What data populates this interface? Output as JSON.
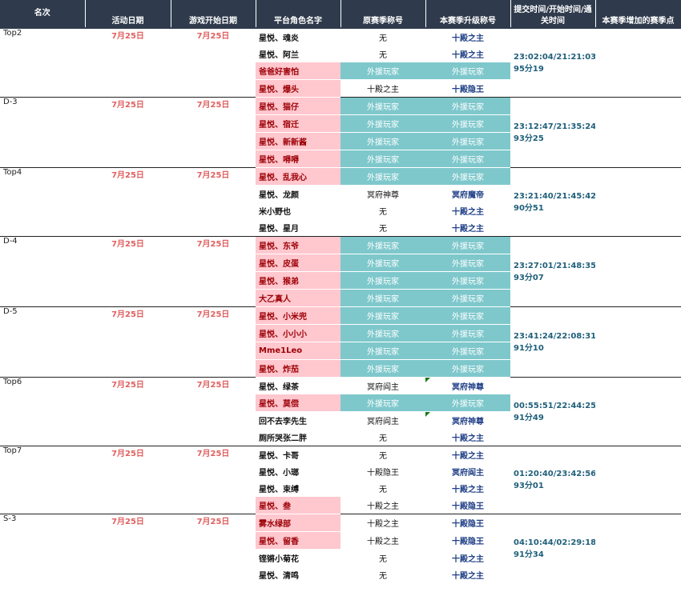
{
  "headers": [
    "名次",
    "活动日期",
    "游戏开始日期",
    "平台角色名字",
    "原赛季称号",
    "本赛季升级称号",
    "提交时间/开始时间/通关时间",
    "本赛季增加的赛季点"
  ],
  "groups": [
    {
      "rank": "Top2",
      "activity_date": "7月25日",
      "start_date": "7月25日",
      "time": "23:02:04/21:21:03",
      "dur": "95分19",
      "rows": [
        {
          "name": "星悦、魂炎",
          "name_pink": false,
          "orig": "无",
          "orig_teal": false,
          "cur": "十殿之主",
          "cur_teal": false,
          "mark": false
        },
        {
          "name": "星悦、阿兰",
          "name_pink": false,
          "orig": "无",
          "orig_teal": false,
          "cur": "十殿之主",
          "cur_teal": false,
          "mark": false
        },
        {
          "name": "爸爸好害怕",
          "name_pink": true,
          "orig": "外援玩家",
          "orig_teal": true,
          "cur": "外援玩家",
          "cur_teal": true,
          "mark": false
        },
        {
          "name": "星悦、爆头",
          "name_pink": true,
          "orig": "十殿之主",
          "orig_teal": false,
          "cur": "十殿隐王",
          "cur_teal": false,
          "mark": false
        }
      ]
    },
    {
      "rank": "D-3",
      "activity_date": "7月25日",
      "start_date": "7月25日",
      "time": "23:12:47/21:35:24",
      "dur": "93分25",
      "rows": [
        {
          "name": "星悦、猫仔",
          "name_pink": true,
          "orig": "外援玩家",
          "orig_teal": true,
          "cur": "外援玩家",
          "cur_teal": true,
          "mark": false
        },
        {
          "name": "星悦、宿迁",
          "name_pink": true,
          "orig": "外援玩家",
          "orig_teal": true,
          "cur": "外援玩家",
          "cur_teal": true,
          "mark": false
        },
        {
          "name": "星悦、新新酱",
          "name_pink": true,
          "orig": "外援玩家",
          "orig_teal": true,
          "cur": "外援玩家",
          "cur_teal": true,
          "mark": false
        },
        {
          "name": "星悦、嘚嘚",
          "name_pink": true,
          "orig": "外援玩家",
          "orig_teal": true,
          "cur": "外援玩家",
          "cur_teal": true,
          "mark": false
        }
      ]
    },
    {
      "rank": "Top4",
      "activity_date": "7月25日",
      "start_date": "7月25日",
      "time": "23:21:40/21:45:42",
      "dur": "90分51",
      "rows": [
        {
          "name": "星悦、乱我心",
          "name_pink": true,
          "orig": "外援玩家",
          "orig_teal": true,
          "cur": "外援玩家",
          "cur_teal": true,
          "mark": false
        },
        {
          "name": "星悦、龙颜",
          "name_pink": false,
          "orig": "冥府神尊",
          "orig_teal": false,
          "cur": "冥府魔帝",
          "cur_teal": false,
          "mark": false
        },
        {
          "name": "米小野也",
          "name_pink": false,
          "orig": "无",
          "orig_teal": false,
          "cur": "十殿之主",
          "cur_teal": false,
          "mark": false
        },
        {
          "name": "星悦、星月",
          "name_pink": false,
          "orig": "无",
          "orig_teal": false,
          "cur": "十殿之主",
          "cur_teal": false,
          "mark": false
        }
      ]
    },
    {
      "rank": "D-4",
      "activity_date": "7月25日",
      "start_date": "7月25日",
      "time": "23:27:01/21:48:35",
      "dur": "93分07",
      "rows": [
        {
          "name": "星悦、东爷",
          "name_pink": true,
          "orig": "外援玩家",
          "orig_teal": true,
          "cur": "外援玩家",
          "cur_teal": true,
          "mark": false
        },
        {
          "name": "星悦、皮蛋",
          "name_pink": true,
          "orig": "外援玩家",
          "orig_teal": true,
          "cur": "外援玩家",
          "cur_teal": true,
          "mark": false
        },
        {
          "name": "星悦、猴弟",
          "name_pink": true,
          "orig": "外援玩家",
          "orig_teal": true,
          "cur": "外援玩家",
          "cur_teal": true,
          "mark": false
        },
        {
          "name": "大乙真人",
          "name_pink": true,
          "orig": "外援玩家",
          "orig_teal": true,
          "cur": "外援玩家",
          "cur_teal": true,
          "mark": false
        }
      ]
    },
    {
      "rank": "D-5",
      "activity_date": "7月25日",
      "start_date": "7月25日",
      "time": "23:41:24/22:08:31",
      "dur": "91分10",
      "rows": [
        {
          "name": "星悦、小米兜",
          "name_pink": true,
          "orig": "外援玩家",
          "orig_teal": true,
          "cur": "外援玩家",
          "cur_teal": true,
          "mark": false
        },
        {
          "name": "星悦、小小小",
          "name_pink": true,
          "orig": "外援玩家",
          "orig_teal": true,
          "cur": "外援玩家",
          "cur_teal": true,
          "mark": false
        },
        {
          "name": "Mme1Leo",
          "name_pink": true,
          "orig": "外援玩家",
          "orig_teal": true,
          "cur": "外援玩家",
          "cur_teal": true,
          "mark": false
        },
        {
          "name": "星悦、炸茄",
          "name_pink": true,
          "orig": "外援玩家",
          "orig_teal": true,
          "cur": "外援玩家",
          "cur_teal": true,
          "mark": false
        }
      ]
    },
    {
      "rank": "Top6",
      "activity_date": "7月25日",
      "start_date": "7月25日",
      "time": "00:55:51/22:44:25",
      "dur": "91分49",
      "rows": [
        {
          "name": "星悦、绿茶",
          "name_pink": false,
          "orig": "冥府阎主",
          "orig_teal": false,
          "cur": "冥府神尊",
          "cur_teal": false,
          "mark": true
        },
        {
          "name": "星悦、莫偿",
          "name_pink": true,
          "orig": "外援玩家",
          "orig_teal": true,
          "cur": "外援玩家",
          "cur_teal": true,
          "mark": false
        },
        {
          "name": "回不去李先生",
          "name_pink": false,
          "orig": "冥府阎主",
          "orig_teal": false,
          "cur": "冥府神尊",
          "cur_teal": false,
          "mark": true
        },
        {
          "name": "厕所哭张二胖",
          "name_pink": false,
          "orig": "无",
          "orig_teal": false,
          "cur": "十殿之主",
          "cur_teal": false,
          "mark": false
        }
      ]
    },
    {
      "rank": "Top7",
      "activity_date": "7月25日",
      "start_date": "7月25日",
      "time": "01:20:40/23:42:56",
      "dur": "93分01",
      "rows": [
        {
          "name": "星悦、卡哥",
          "name_pink": false,
          "orig": "无",
          "orig_teal": false,
          "cur": "十殿之主",
          "cur_teal": false,
          "mark": false
        },
        {
          "name": "星悦、小瑯",
          "name_pink": false,
          "orig": "十殿隐王",
          "orig_teal": false,
          "cur": "冥府阎主",
          "cur_teal": false,
          "mark": false
        },
        {
          "name": "星悦、束缚",
          "name_pink": false,
          "orig": "无",
          "orig_teal": false,
          "cur": "十殿之主",
          "cur_teal": false,
          "mark": false
        },
        {
          "name": "星悦、叁",
          "name_pink": true,
          "orig": "十殿之主",
          "orig_teal": false,
          "cur": "十殿隐王",
          "cur_teal": false,
          "mark": false
        }
      ]
    },
    {
      "rank": "S-3",
      "activity_date": "7月25日",
      "start_date": "7月25日",
      "time": "04:10:44/02:29:18",
      "dur": "91分34",
      "rows": [
        {
          "name": "雾水绿部",
          "name_pink": true,
          "orig": "十殿之主",
          "orig_teal": false,
          "cur": "十殿隐王",
          "cur_teal": false,
          "mark": false
        },
        {
          "name": "星悦、留香",
          "name_pink": true,
          "orig": "十殿之主",
          "orig_teal": false,
          "cur": "十殿隐王",
          "cur_teal": false,
          "mark": false
        },
        {
          "name": "铿锵小菊花",
          "name_pink": false,
          "orig": "无",
          "orig_teal": false,
          "cur": "十殿之主",
          "cur_teal": false,
          "mark": false
        },
        {
          "name": "星悦、清鸣",
          "name_pink": false,
          "orig": "无",
          "orig_teal": false,
          "cur": "十殿之主",
          "cur_teal": false,
          "mark": false
        }
      ]
    }
  ]
}
